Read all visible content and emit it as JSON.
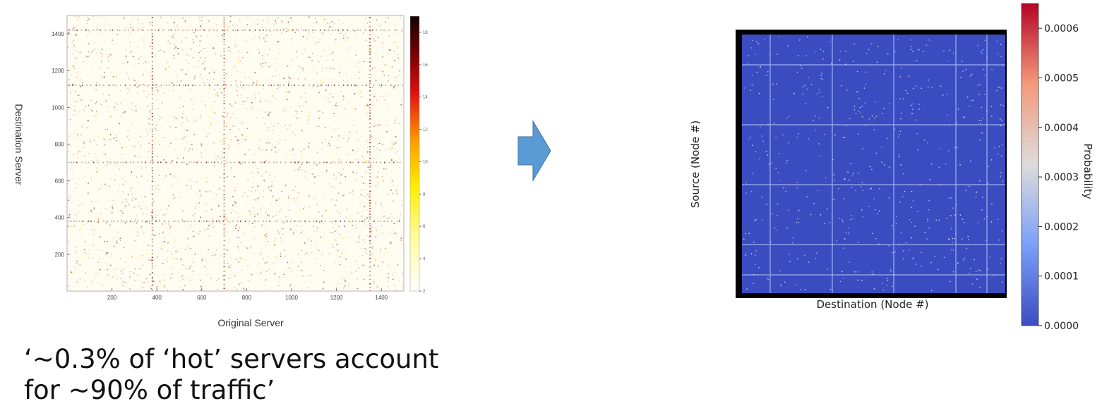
{
  "left_chart": {
    "ylabel": "Destination Server",
    "xlabel": "Original Server",
    "xticks": [
      "200",
      "400",
      "600",
      "800",
      "1000",
      "1200",
      "1400"
    ],
    "yticks": [
      "200",
      "400",
      "600",
      "800",
      "1000",
      "1200",
      "1400"
    ],
    "cbar_ticks": [
      "2",
      "4",
      "6",
      "8",
      "10",
      "12",
      "14",
      "16",
      "18"
    ]
  },
  "right_chart": {
    "ylabel": "Source (Node #)",
    "xlabel": "Destination (Node #)",
    "cbar_label": "Probability",
    "cbar_ticks": [
      "0.0000",
      "0.0001",
      "0.0002",
      "0.0003",
      "0.0004",
      "0.0005",
      "0.0006"
    ]
  },
  "caption": {
    "line1": "‘~0.3% of ‘hot’ servers account",
    "line2": "for ~90% of traffic’"
  },
  "colors": {
    "arrow": "#5b9bd5",
    "heatmap_blue": "#3b4cc0",
    "coolwarm_red": "#b40426"
  },
  "chart_data": [
    {
      "type": "heatmap",
      "xlabel": "Original Server",
      "ylabel": "Destination Server",
      "xlim": [
        0,
        1500
      ],
      "ylim": [
        0,
        1500
      ],
      "x_ticks": [
        200,
        400,
        600,
        800,
        1000,
        1200,
        1400
      ],
      "y_ticks": [
        200,
        400,
        600,
        800,
        1000,
        1200,
        1400
      ],
      "colorbar_range": [
        2,
        19
      ],
      "colormap": "hot_r",
      "hot_columns": [
        700,
        1350,
        380
      ],
      "hot_rows": [
        700,
        380,
        1120,
        1420
      ]
    },
    {
      "type": "heatmap",
      "xlabel": "Destination (Node #)",
      "ylabel": "Source (Node #)",
      "colorbar_label": "Probability",
      "colorbar_range": [
        0,
        0.00065
      ],
      "colormap": "coolwarm"
    }
  ]
}
